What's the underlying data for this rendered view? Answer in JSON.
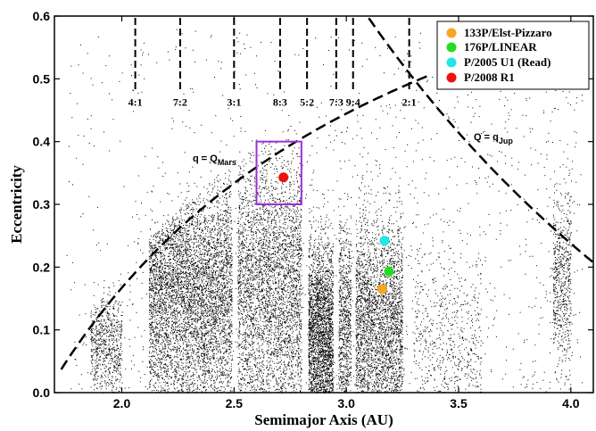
{
  "chart_data": {
    "type": "scatter",
    "xlabel": "Semimajor Axis (AU)",
    "ylabel": "Eccentricity",
    "xlim": [
      1.7,
      4.1
    ],
    "ylim": [
      0.0,
      0.6
    ],
    "x_ticks": [
      "2.0",
      "2.5",
      "3.0",
      "3.5",
      "4.0"
    ],
    "x_tick_values": [
      2.0,
      2.5,
      3.0,
      3.5,
      4.0
    ],
    "y_ticks": [
      "0.0",
      "0.1",
      "0.2",
      "0.3",
      "0.4",
      "0.5",
      "0.6"
    ],
    "y_tick_values": [
      0.0,
      0.1,
      0.2,
      0.3,
      0.4,
      0.5,
      0.6
    ],
    "grid": false,
    "legend_position": "top-right",
    "series": [
      {
        "name": "133P/Elst-Pizzaro",
        "color": "#f5a623",
        "points": [
          [
            3.16,
            0.165
          ]
        ]
      },
      {
        "name": "176P/LINEAR",
        "color": "#22dd22",
        "points": [
          [
            3.19,
            0.193
          ]
        ]
      },
      {
        "name": "P/2005 U1 (Read)",
        "color": "#22e5e5",
        "points": [
          [
            3.17,
            0.242
          ]
        ]
      },
      {
        "name": "P/2008 R1",
        "color": "#ee1111",
        "points": [
          [
            2.72,
            0.343
          ]
        ]
      }
    ],
    "resonances": [
      {
        "label": "4:1",
        "a": 2.06
      },
      {
        "label": "7:2",
        "a": 2.26
      },
      {
        "label": "3:1",
        "a": 2.5
      },
      {
        "label": "8:3",
        "a": 2.705
      },
      {
        "label": "5:2",
        "a": 2.825
      },
      {
        "label": "7:3",
        "a": 2.955
      },
      {
        "label": "9:4",
        "a": 3.03
      },
      {
        "label": "2:1",
        "a": 3.28
      }
    ],
    "curves": [
      {
        "label": "q = Q",
        "subscript": "Mars",
        "description": "perihelion equals Mars aphelion"
      },
      {
        "label": "Q = q",
        "subscript": "Jup",
        "description": "aphelion equals Jupiter perihelion"
      }
    ],
    "highlight_box": {
      "color": "#9b30d9",
      "a_range": [
        2.6,
        2.8
      ],
      "e_range": [
        0.3,
        0.4
      ]
    },
    "background_population": "main-belt asteroids (dense black dots)"
  }
}
